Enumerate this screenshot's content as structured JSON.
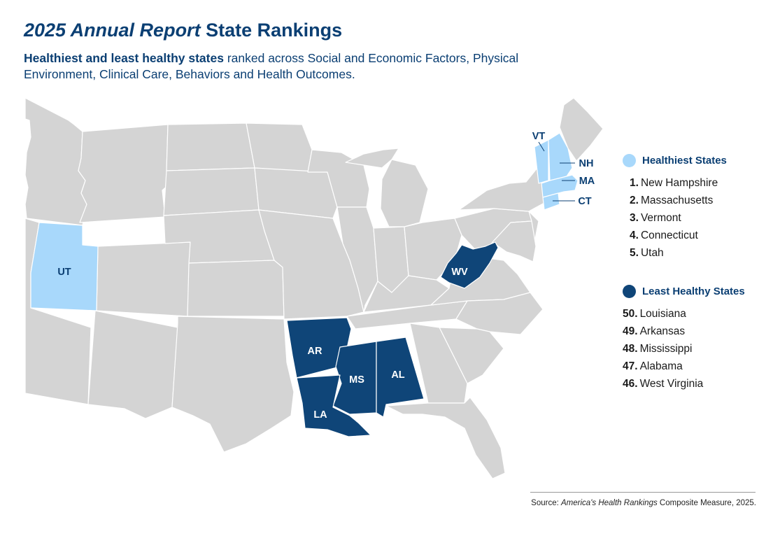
{
  "title": {
    "italic": "2025 Annual Report",
    "rest": "State Rankings"
  },
  "subtitle": {
    "bold": "Healthiest and least healthy states",
    "rest": "ranked across Social and Economic Factors, Physical Environment, Clinical Care, Behaviors and Health Outcomes."
  },
  "colors": {
    "base": "#d4d4d4",
    "healthiest": "#a8d8fb",
    "least_healthy": "#0f4578",
    "text": "#0b3f73"
  },
  "map": {
    "healthiest_labels": [
      "VT",
      "NH",
      "MA",
      "CT",
      "UT"
    ],
    "least_labels": [
      "WV",
      "AR",
      "MS",
      "AL",
      "LA"
    ]
  },
  "legend": {
    "healthiest": {
      "heading": "Healthiest States",
      "items": [
        {
          "rank": "1.",
          "state": "New Hampshire"
        },
        {
          "rank": "2.",
          "state": "Massachusetts"
        },
        {
          "rank": "3.",
          "state": "Vermont"
        },
        {
          "rank": "4.",
          "state": "Connecticut"
        },
        {
          "rank": "5.",
          "state": "Utah"
        }
      ]
    },
    "least": {
      "heading": "Least Healthy States",
      "items": [
        {
          "rank": "50.",
          "state": "Louisiana"
        },
        {
          "rank": "49.",
          "state": "Arkansas"
        },
        {
          "rank": "48.",
          "state": "Mississippi"
        },
        {
          "rank": "47.",
          "state": "Alabama"
        },
        {
          "rank": "46.",
          "state": "West Virginia"
        }
      ]
    }
  },
  "source": {
    "prefix": "Source:",
    "italic": "America's Health Rankings",
    "rest": "Composite Measure, 2025."
  }
}
